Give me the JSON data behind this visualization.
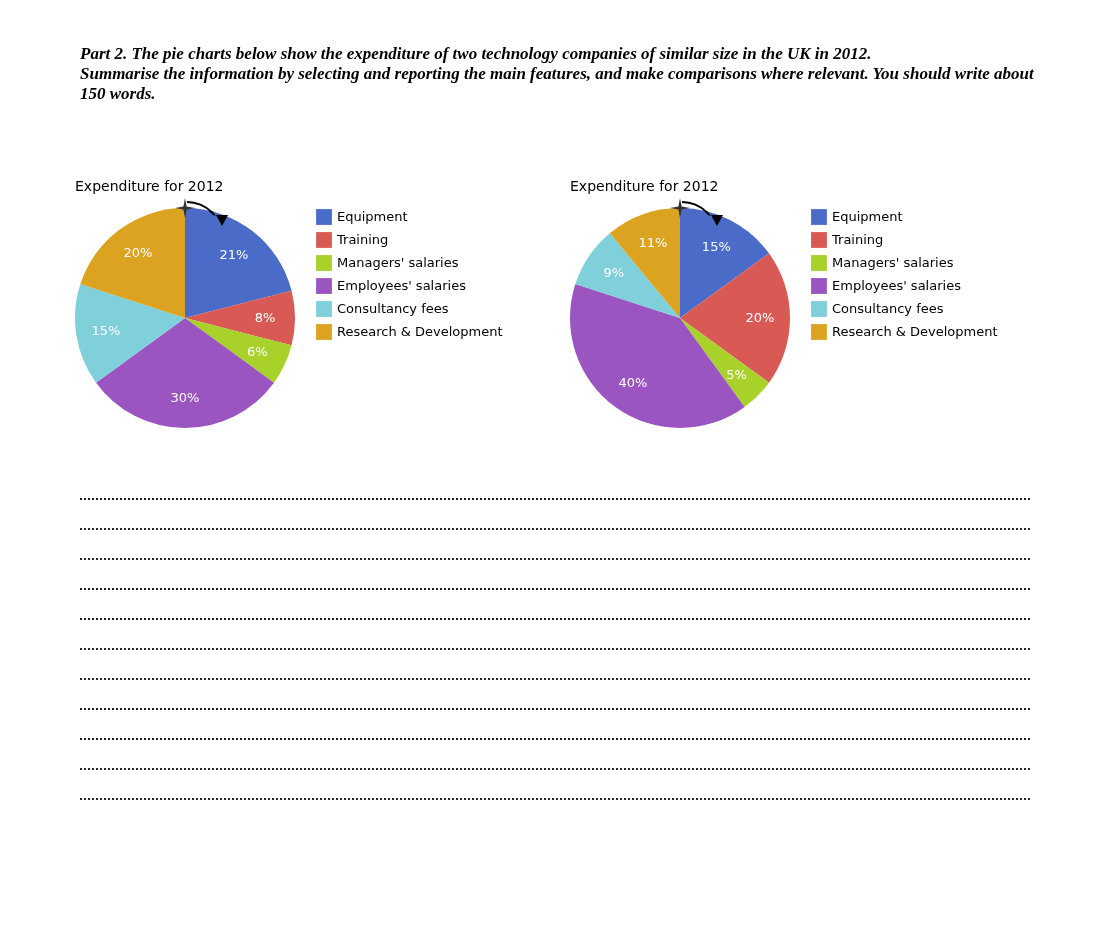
{
  "chart_data": [
    {
      "type": "pie",
      "title": "Expenditure for 2012",
      "annotations": [
        "Part 2.  The pie charts below show the expenditure of two technology companies of similar size in the UK in 2012.",
        "Summarise the information by selecting and reporting the main features, and make comparisons where relevant. You should write about 150 words."
      ],
      "categories": [
        "Equipment",
        "Training",
        "Managers' salaries",
        "Employees' salaries",
        "Consultancy fees",
        "Research & Development"
      ],
      "values": [
        21,
        8,
        6,
        30,
        15,
        20
      ],
      "value_labels": [
        "21%",
        "8%",
        "6%",
        "30%",
        "15%",
        "20%"
      ],
      "colors": [
        "#4a6cc8",
        "#d95a55",
        "#a8d12a",
        "#9a55c0",
        "#7fd0db",
        "#dca320"
      ],
      "legend": "right"
    },
    {
      "type": "pie",
      "title": "Expenditure for 2012",
      "categories": [
        "Equipment",
        "Training",
        "Managers' salaries",
        "Employees' salaries",
        "Consultancy fees",
        "Research & Development"
      ],
      "values": [
        15,
        20,
        5,
        40,
        9,
        11
      ],
      "value_labels": [
        "15%",
        "20%",
        "5%",
        "40%",
        "9%",
        "11%"
      ],
      "colors": [
        "#4a6cc8",
        "#d95a55",
        "#a8d12a",
        "#9a55c0",
        "#7fd0db",
        "#dca320"
      ],
      "legend": "right"
    }
  ]
}
